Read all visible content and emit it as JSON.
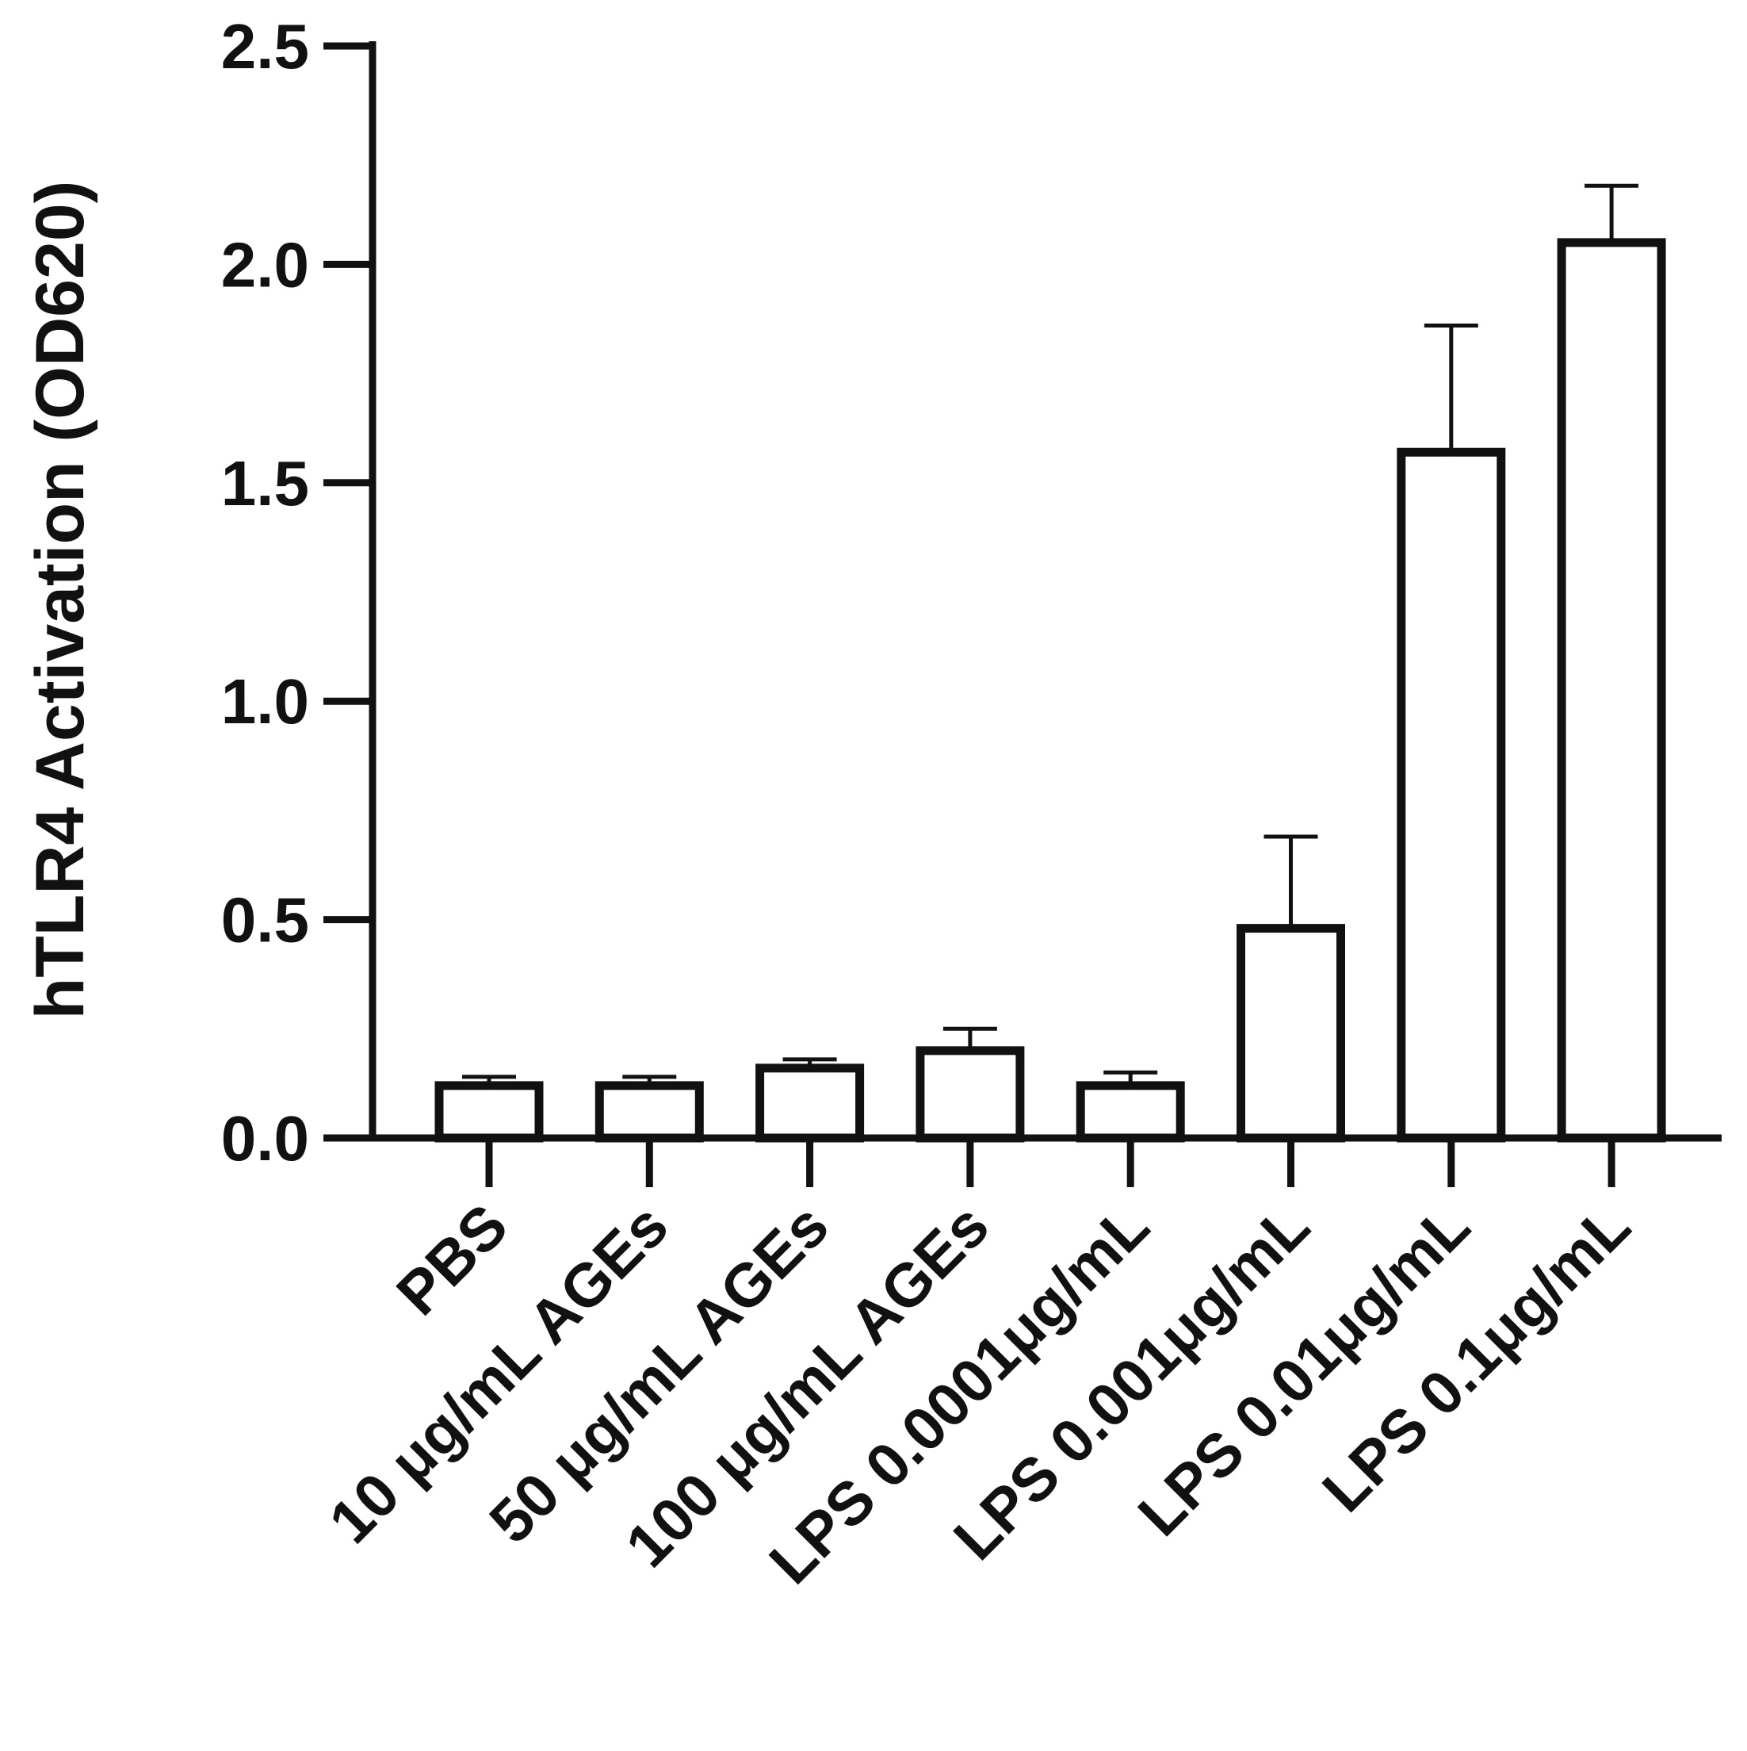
{
  "chart_data": {
    "type": "bar",
    "title": "",
    "xlabel": "",
    "ylabel": "hTLR4 Activation (OD620)",
    "ylim": [
      0,
      2.5
    ],
    "yticks": [
      "0.0",
      "0.5",
      "1.0",
      "1.5",
      "2.0",
      "2.5"
    ],
    "grid": false,
    "legend": "none",
    "categories": [
      "PBS",
      "10 μg/mL AGEs",
      "50 μg/mL AGEs",
      "100 μg/mL AGEs",
      "LPS 0.0001μg/mL",
      "LPS 0.001μg/mL",
      "LPS 0.01μg/mL",
      "LPS 0.1μg/mL"
    ],
    "values": [
      0.12,
      0.12,
      0.16,
      0.2,
      0.12,
      0.48,
      1.57,
      2.05
    ],
    "error_upper": [
      0.02,
      0.02,
      0.02,
      0.05,
      0.03,
      0.21,
      0.29,
      0.13
    ],
    "colors": {
      "bar_fill": "#ffffff",
      "bar_stroke": "#111111",
      "axis": "#111111",
      "text": "#111111"
    }
  }
}
